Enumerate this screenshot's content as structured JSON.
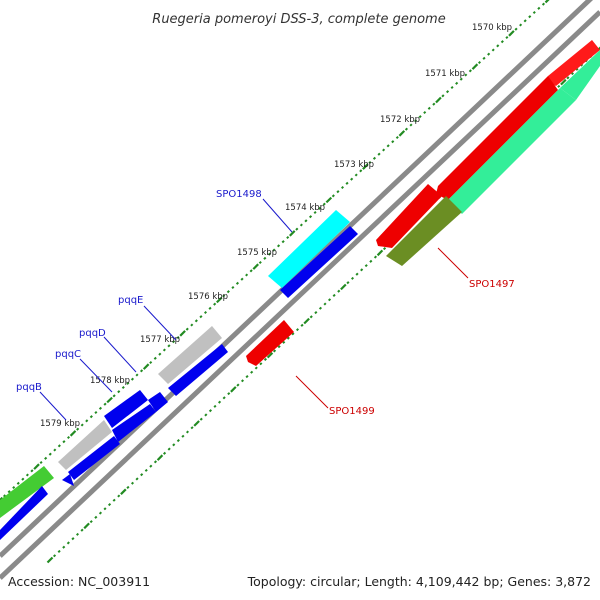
{
  "title": "Ruegeria pomeroyi DSS-3, complete genome",
  "accession": "Accession: NC_003911",
  "topology": "Topology: circular; Length: 4,109,442 bp; Genes: 3,872",
  "ticks": [
    "1570 kbp",
    "1571 kbp",
    "1572 kbp",
    "1573 kbp",
    "1574 kbp",
    "1575 kbp",
    "1576 kbp",
    "1577 kbp",
    "1578 kbp",
    "1579 kbp"
  ],
  "gene_labels": [
    {
      "name": "SPO1498",
      "color": "#1a1acc"
    },
    {
      "name": "pqqE",
      "color": "#1a1acc"
    },
    {
      "name": "pqqD",
      "color": "#1a1acc"
    },
    {
      "name": "pqqC",
      "color": "#1a1acc"
    },
    {
      "name": "pqqB",
      "color": "#1a1acc"
    },
    {
      "name": "SPO1497",
      "color": "#cc0000"
    },
    {
      "name": "SPO1499",
      "color": "#cc0000"
    }
  ],
  "colors": {
    "backbone": "#808080",
    "forward_cds": "#0000ee",
    "reverse_cds": "#ff0000",
    "cyan_feature": "#00ffff",
    "gray_feature": "#c0c0c0",
    "green_feature": "#44cc33",
    "olive_feature": "#6b8e23",
    "aqua_feature": "#33ee99",
    "dots": "#228b22"
  }
}
